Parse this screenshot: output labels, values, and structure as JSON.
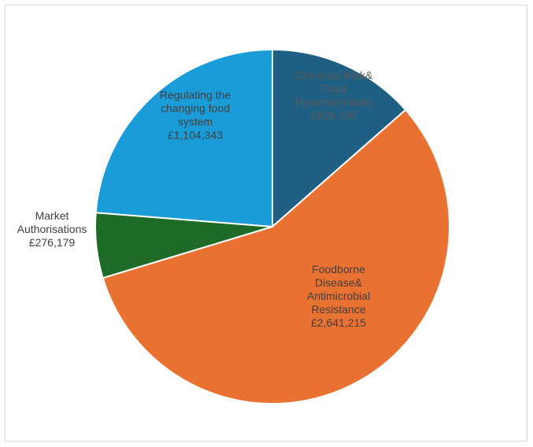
{
  "chart_data": {
    "type": "pie",
    "title": "",
    "slices": [
      {
        "label_lines": [
          "Chemical Risk&",
          "Food",
          "Hypersensitivity"
        ],
        "value_label": "£629,596",
        "value": 629596,
        "color": "#1f5f84",
        "label_color": "#595959"
      },
      {
        "label_lines": [
          "Foodborne",
          "Disease&",
          "Antimicrobial",
          "Resistance"
        ],
        "value_label": "£2,641,215",
        "value": 2641215,
        "color": "#e97132",
        "label_color": "#404040"
      },
      {
        "label_lines": [
          "Market",
          "Authorisations"
        ],
        "value_label": "£276,179",
        "value": 276179,
        "color": "#1d6b26",
        "label_color": "#404040"
      },
      {
        "label_lines": [
          "Regulating the",
          "changing food",
          "system"
        ],
        "value_label": "£1,104,343",
        "value": 1104343,
        "color": "#199cd8",
        "label_color": "#404040"
      }
    ],
    "legend": "none",
    "data_labels": "on-slice"
  }
}
